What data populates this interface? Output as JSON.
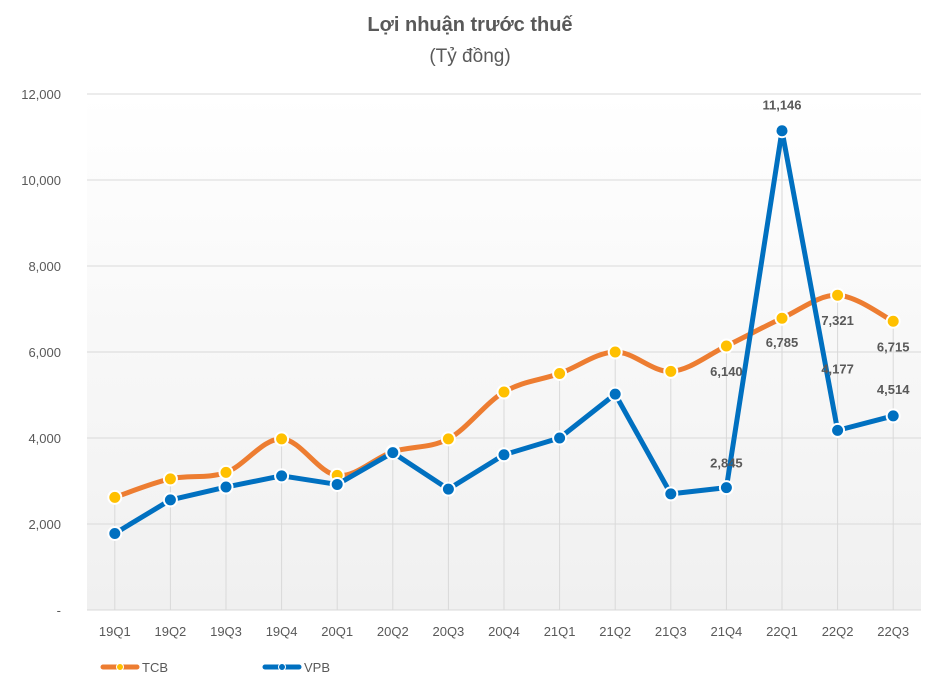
{
  "chart_data": {
    "type": "line",
    "title": "Lợi nhuận trước thuế",
    "subtitle": "(Tỷ đồng)",
    "categories": [
      "19Q1",
      "19Q2",
      "19Q3",
      "19Q4",
      "20Q1",
      "20Q2",
      "20Q3",
      "20Q4",
      "21Q1",
      "21Q2",
      "21Q3",
      "21Q4",
      "22Q1",
      "22Q2",
      "22Q3"
    ],
    "ylim": [
      0,
      12000
    ],
    "yticks": [
      "-",
      "2,000",
      "4,000",
      "6,000",
      "8,000",
      "10,000",
      "12,000"
    ],
    "grid": true,
    "legend_position": "bottom-left",
    "series": [
      {
        "name": "TCB",
        "color": "#ED7D31",
        "marker_color": "#FFC000",
        "smooth": true,
        "values": [
          2620,
          3050,
          3200,
          3980,
          3130,
          3680,
          3980,
          5070,
          5500,
          6000,
          5550,
          6140,
          6785,
          7321,
          6715
        ],
        "labels": {
          "11": "6,140",
          "12": "6,785",
          "13": "7,321",
          "14": "6,715"
        }
      },
      {
        "name": "VPB",
        "color": "#0070C0",
        "marker_color": "#0070C0",
        "smooth": false,
        "values": [
          1780,
          2560,
          2860,
          3120,
          2920,
          3660,
          2810,
          3610,
          4000,
          5020,
          2700,
          2845,
          11146,
          4177,
          4514
        ],
        "labels": {
          "11": "2,845",
          "12": "11,146",
          "13": "4,177",
          "14": "4,514"
        }
      }
    ]
  }
}
